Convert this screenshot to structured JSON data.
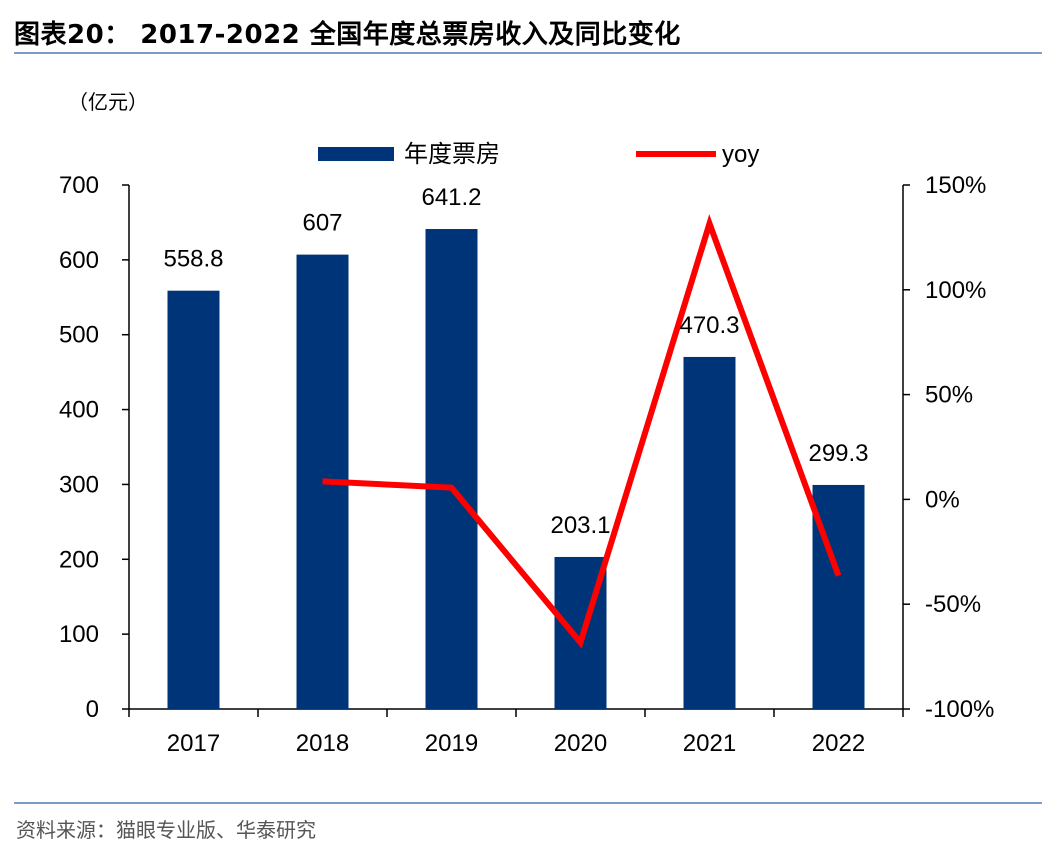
{
  "figure_title": "图表20： 2017-2022 全国年度总票房收入及同比变化",
  "unit_label": "（亿元）",
  "source": "资料来源：猫眼专业版、华泰研究",
  "colors": {
    "bar": "#003478",
    "line": "#ff0000",
    "rule": "#7a9cc2"
  },
  "chart_data": {
    "type": "bar",
    "categories": [
      "2017",
      "2018",
      "2019",
      "2020",
      "2021",
      "2022"
    ],
    "series": [
      {
        "name": "年度票房",
        "type": "bar",
        "axis": "left",
        "values": [
          558.8,
          607,
          641.2,
          203.1,
          470.3,
          299.3
        ],
        "labels": [
          "558.8",
          "607",
          "641.2",
          "203.1",
          "470.3",
          "299.3"
        ]
      },
      {
        "name": "yoy",
        "type": "line",
        "axis": "right",
        "values": [
          null,
          8.6,
          5.6,
          -68.3,
          131.6,
          -36.4
        ]
      }
    ],
    "ylim_left": [
      0,
      700
    ],
    "yticks_left": [
      "0",
      "100",
      "200",
      "300",
      "400",
      "500",
      "600",
      "700"
    ],
    "ylim_right": [
      -100,
      150
    ],
    "yticks_right": [
      "-100%",
      "-50%",
      "0%",
      "50%",
      "100%",
      "150%"
    ],
    "legend_position": "top-center",
    "grid": false
  }
}
